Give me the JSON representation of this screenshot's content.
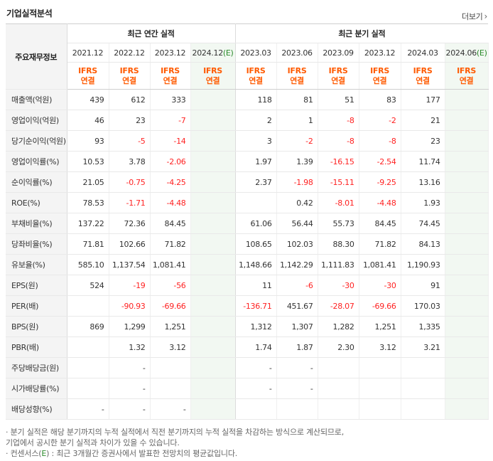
{
  "title": "기업실적분석",
  "more_label": "더보기",
  "header": {
    "row_label": "주요재무정보",
    "annual_group": "최근 연간 실적",
    "quarter_group": "최근 분기 실적",
    "annual_periods": [
      {
        "label": "2021.12",
        "est": ""
      },
      {
        "label": "2022.12",
        "est": ""
      },
      {
        "label": "2023.12",
        "est": ""
      },
      {
        "label": "2024.12",
        "est": "(E)"
      }
    ],
    "quarter_periods": [
      {
        "label": "2023.03",
        "est": ""
      },
      {
        "label": "2023.06",
        "est": ""
      },
      {
        "label": "2023.09",
        "est": ""
      },
      {
        "label": "2023.12",
        "est": ""
      },
      {
        "label": "2024.03",
        "est": ""
      },
      {
        "label": "2024.06",
        "est": "(E)"
      }
    ],
    "ifrs_top": "IFRS",
    "ifrs_bottom": "연결"
  },
  "rows": [
    {
      "label": "매출액(억원)",
      "annual": [
        "439",
        "612",
        "333",
        ""
      ],
      "quarter": [
        "118",
        "81",
        "51",
        "83",
        "177",
        ""
      ]
    },
    {
      "label": "영업이익(억원)",
      "annual": [
        "46",
        "23",
        "-7",
        ""
      ],
      "quarter": [
        "2",
        "1",
        "-8",
        "-2",
        "21",
        ""
      ]
    },
    {
      "label": "당기순이익(억원)",
      "annual": [
        "93",
        "-5",
        "-14",
        ""
      ],
      "quarter": [
        "3",
        "-2",
        "-8",
        "-8",
        "23",
        ""
      ]
    },
    {
      "label": "영업이익률(%)",
      "annual": [
        "10.53",
        "3.78",
        "-2.06",
        ""
      ],
      "quarter": [
        "1.97",
        "1.39",
        "-16.15",
        "-2.54",
        "11.74",
        ""
      ]
    },
    {
      "label": "순이익률(%)",
      "annual": [
        "21.05",
        "-0.75",
        "-4.25",
        ""
      ],
      "quarter": [
        "2.37",
        "-1.98",
        "-15.11",
        "-9.25",
        "13.16",
        ""
      ]
    },
    {
      "label": "ROE(%)",
      "annual": [
        "78.53",
        "-1.71",
        "-4.48",
        ""
      ],
      "quarter": [
        "",
        "0.42",
        "-8.01",
        "-4.48",
        "1.93",
        ""
      ]
    },
    {
      "label": "부채비율(%)",
      "annual": [
        "137.22",
        "72.36",
        "84.45",
        ""
      ],
      "quarter": [
        "61.06",
        "56.44",
        "55.73",
        "84.45",
        "74.45",
        ""
      ]
    },
    {
      "label": "당좌비율(%)",
      "annual": [
        "71.81",
        "102.66",
        "71.82",
        ""
      ],
      "quarter": [
        "108.65",
        "102.03",
        "88.30",
        "71.82",
        "84.13",
        ""
      ]
    },
    {
      "label": "유보율(%)",
      "annual": [
        "585.10",
        "1,137.54",
        "1,081.41",
        ""
      ],
      "quarter": [
        "1,148.66",
        "1,142.29",
        "1,111.83",
        "1,081.41",
        "1,190.93",
        ""
      ]
    },
    {
      "label": "EPS(원)",
      "annual": [
        "524",
        "-19",
        "-56",
        ""
      ],
      "quarter": [
        "11",
        "-6",
        "-30",
        "-30",
        "91",
        ""
      ]
    },
    {
      "label": "PER(배)",
      "annual": [
        "",
        "-90.93",
        "-69.66",
        ""
      ],
      "quarter": [
        "-136.71",
        "451.67",
        "-28.07",
        "-69.66",
        "170.03",
        ""
      ]
    },
    {
      "label": "BPS(원)",
      "annual": [
        "869",
        "1,299",
        "1,251",
        ""
      ],
      "quarter": [
        "1,312",
        "1,307",
        "1,282",
        "1,251",
        "1,335",
        ""
      ]
    },
    {
      "label": "PBR(배)",
      "annual": [
        "",
        "1.32",
        "3.12",
        ""
      ],
      "quarter": [
        "1.74",
        "1.87",
        "2.30",
        "3.12",
        "3.21",
        ""
      ]
    },
    {
      "label": "주당배당금(원)",
      "annual": [
        "",
        "-",
        "",
        ""
      ],
      "quarter": [
        "-",
        "-",
        "",
        "",
        "",
        ""
      ]
    },
    {
      "label": "시가배당률(%)",
      "annual": [
        "",
        "-",
        "",
        ""
      ],
      "quarter": [
        "-",
        "-",
        "",
        "",
        "",
        ""
      ]
    },
    {
      "label": "배당성향(%)",
      "annual": [
        "-",
        "-",
        "-",
        ""
      ],
      "quarter": [
        "",
        "",
        "",
        "",
        "",
        ""
      ]
    }
  ],
  "notes": {
    "line1": "· 분기 실적은 해당 분기까지의 누적 실적에서 직전 분기까지의 누적 실적을 차감하는 방식으로 계산되므로,",
    "line2": "  기업에서 공시한 분기 실적과 차이가 있을 수 있습니다.",
    "line3_prefix": "· 컨센서스(",
    "line3_e": "E",
    "line3_suffix": ") : 최근 3개월간 증권사에서 발표한 전망치의 평균값입니다."
  },
  "colors": {
    "negative": "#ff2222",
    "ifrs": "#ff5a00",
    "estimate_bg": "#f2f8f2",
    "estimate_mark": "#2a8a2a"
  }
}
